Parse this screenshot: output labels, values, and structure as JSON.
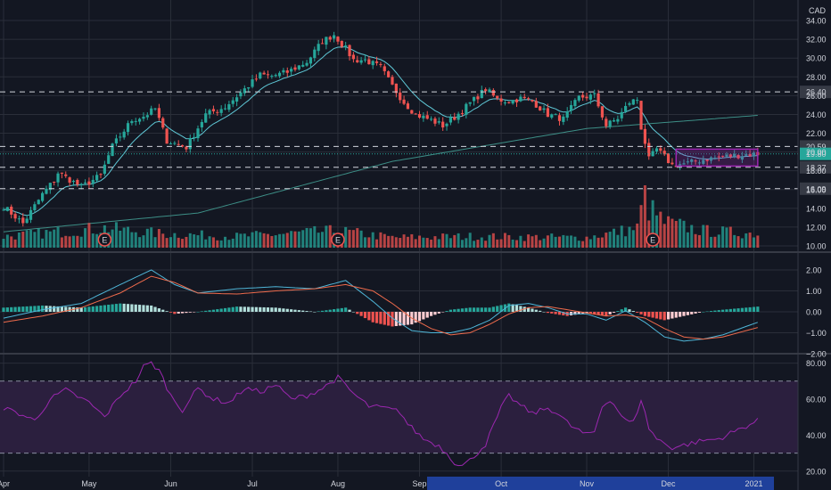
{
  "currency": "CAD",
  "colors": {
    "background": "#131722",
    "grid": "#2a2e39",
    "up": "#26a69a",
    "down": "#ef5350",
    "ema_short": "#5fc8d6",
    "ema_long": "#3d8e86",
    "macd_line": "#4fb6d8",
    "signal_line": "#ef6b4c",
    "hist_up_strong": "#26a69a",
    "hist_up_weak": "#b2dfdb",
    "hist_down_strong": "#ef5350",
    "hist_down_weak": "#ffcdd2",
    "rsi_line": "#9c27b0",
    "rsi_band": "#2b1f3e",
    "consolidation_box": "#9c27b0",
    "label_bg": "#363a45",
    "last_price_bg": "#26a69a",
    "x_highlight": "#2962ff"
  },
  "price_axis": {
    "labels": [
      "34.00",
      "32.00",
      "30.00",
      "28.00",
      "26.00",
      "24.00",
      "22.00",
      "20.00",
      "18.00",
      "16.00",
      "14.00",
      "12.00",
      "10.00"
    ],
    "values": [
      34,
      32,
      30,
      28,
      26,
      24,
      22,
      20,
      18,
      16,
      14,
      12,
      10
    ]
  },
  "horizontal_levels": [
    {
      "label": "26.40",
      "value": 26.4
    },
    {
      "label": "20.59",
      "value": 20.59
    },
    {
      "label": "18.37",
      "value": 18.37
    },
    {
      "label": "16.09",
      "value": 16.09
    }
  ],
  "last_price": {
    "label": "19.80",
    "value": 19.8
  },
  "macd_axis": {
    "labels": [
      "2.00",
      "1.00",
      "0.00",
      "−1.00",
      "−2.00"
    ],
    "values": [
      2,
      1,
      0,
      -1,
      -2
    ]
  },
  "rsi_axis": {
    "labels": [
      "80.00",
      "60.00",
      "40.00",
      "20.00"
    ],
    "values": [
      80,
      60,
      40,
      20
    ],
    "upper_band": 70,
    "lower_band": 30
  },
  "x_axis": {
    "labels": [
      "Apr",
      "May",
      "Jun",
      "Jul",
      "Aug",
      "Sep",
      "Oct",
      "Nov",
      "Dec",
      "2021"
    ],
    "positions": [
      0,
      22,
      43,
      64,
      86,
      107,
      128,
      150,
      171,
      193
    ],
    "highlight_start_label": "Sep"
  },
  "earnings_markers": {
    "label": "E",
    "positions": [
      26,
      86,
      167
    ]
  },
  "chart_data": {
    "type": "candlestick",
    "currency": "CAD",
    "period": "Daily, Apr 2020 to early Jan 2021",
    "price_anchors": {
      "x": [
        0,
        5,
        10,
        13,
        14,
        20,
        25,
        27,
        28,
        33,
        36,
        39,
        42,
        47,
        52,
        57,
        62,
        66,
        69,
        73,
        78,
        82,
        85,
        88,
        90,
        93,
        97,
        100,
        103,
        106,
        110,
        113,
        116,
        120,
        124,
        127,
        130,
        133,
        136,
        140,
        144,
        148,
        152,
        155,
        158,
        161,
        163,
        164,
        165,
        166,
        168,
        172,
        176,
        180,
        185,
        190,
        194
      ],
      "close": [
        14.2,
        12.4,
        15.5,
        17.0,
        17.8,
        16.3,
        17.5,
        19.6,
        20.6,
        23.4,
        23.8,
        24.6,
        21.2,
        20.5,
        24.0,
        24.8,
        26.7,
        28.2,
        28.1,
        28.5,
        29.6,
        31.8,
        32.5,
        31.0,
        29.8,
        29.8,
        29.0,
        27.0,
        25.3,
        24.0,
        23.4,
        22.8,
        23.7,
        25.2,
        26.7,
        25.6,
        25.4,
        25.7,
        25.4,
        24.0,
        23.5,
        25.8,
        26.0,
        22.8,
        23.6,
        25.3,
        25.6,
        22.6,
        21.0,
        19.2,
        20.3,
        18.6,
        18.8,
        19.2,
        19.5,
        19.7,
        19.8
      ]
    },
    "volume_anchors": {
      "x": [
        0,
        26,
        40,
        60,
        86,
        100,
        120,
        150,
        163,
        165,
        166,
        170,
        180,
        194
      ],
      "relative": [
        0.2,
        0.35,
        0.25,
        0.2,
        0.3,
        0.18,
        0.2,
        0.18,
        0.35,
        1.0,
        0.7,
        0.45,
        0.3,
        0.25
      ]
    },
    "ema_long": {
      "x": [
        0,
        50,
        100,
        150,
        194
      ],
      "y": [
        11.5,
        13.5,
        19.0,
        22.5,
        23.9
      ]
    },
    "macd": {
      "x": [
        0,
        10,
        20,
        30,
        38,
        44,
        50,
        60,
        70,
        80,
        88,
        95,
        100,
        105,
        110,
        115,
        120,
        125,
        130,
        135,
        140,
        145,
        150,
        155,
        160,
        165,
        170,
        175,
        180,
        185,
        194
      ],
      "macd": [
        -0.3,
        0.1,
        0.4,
        1.3,
        2.0,
        1.3,
        0.9,
        1.1,
        1.2,
        1.1,
        1.5,
        0.5,
        -0.3,
        -0.9,
        -1.0,
        -1.0,
        -0.8,
        -0.4,
        0.3,
        0.4,
        0.2,
        -0.1,
        -0.1,
        -0.4,
        0.05,
        -0.5,
        -1.2,
        -1.4,
        -1.3,
        -1.1,
        -0.5
      ],
      "signal": [
        -0.5,
        -0.2,
        0.2,
        0.9,
        1.7,
        1.4,
        0.9,
        0.85,
        1.0,
        1.1,
        1.3,
        1.0,
        0.4,
        -0.3,
        -0.8,
        -1.1,
        -1.0,
        -0.6,
        -0.1,
        0.2,
        0.25,
        0.1,
        -0.05,
        -0.2,
        -0.15,
        -0.3,
        -0.8,
        -1.2,
        -1.3,
        -1.2,
        -0.75
      ]
    },
    "rsi": {
      "x": [
        0,
        4,
        8,
        12,
        16,
        22,
        26,
        30,
        34,
        36,
        38,
        40,
        43,
        46,
        50,
        54,
        58,
        62,
        66,
        70,
        74,
        78,
        82,
        86,
        90,
        94,
        98,
        102,
        104,
        108,
        112,
        114,
        116,
        118,
        120,
        124,
        128,
        130,
        132,
        136,
        140,
        142,
        146,
        150,
        152,
        154,
        156,
        160,
        162,
        164,
        166,
        168,
        172,
        176,
        180,
        184,
        188,
        190,
        194
      ],
      "y": [
        55,
        52,
        48,
        60,
        65,
        58,
        50,
        62,
        70,
        78,
        80,
        76,
        62,
        54,
        66,
        60,
        58,
        66,
        64,
        68,
        60,
        62,
        66,
        72,
        63,
        56,
        55,
        53,
        46,
        38,
        34,
        30,
        25,
        23,
        26,
        35,
        55,
        62,
        58,
        52,
        55,
        53,
        45,
        40,
        42,
        56,
        60,
        48,
        47,
        60,
        44,
        38,
        33,
        35,
        37,
        38,
        42,
        44,
        48
      ]
    }
  }
}
